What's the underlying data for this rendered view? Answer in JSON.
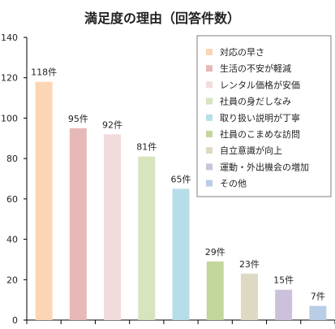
{
  "chart_data": {
    "type": "bar",
    "title": "満足度の理由（回答件数）",
    "categories": [
      "対応の早さ",
      "生活の不安が軽減",
      "レンタル価格が安価",
      "社員の身だしなみ",
      "取り扱い説明が丁寧",
      "社員のこまめな訪問",
      "自立意識が向上",
      "運動・外出機会の増加",
      "その他"
    ],
    "values": [
      118,
      95,
      92,
      81,
      65,
      29,
      23,
      15,
      7
    ],
    "data_labels": [
      "118件",
      "95件",
      "92件",
      "81件",
      "65件",
      "29件",
      "23件",
      "15件",
      "7件"
    ],
    "colors": [
      "#fcd5b5",
      "#e6b9b8",
      "#f2dcdb",
      "#d7e4bd",
      "#b7dee8",
      "#c3d69b",
      "#ddd9c3",
      "#ccc1da",
      "#b9cde5"
    ],
    "ylim": [
      0,
      140
    ],
    "yticks": [
      0,
      20,
      40,
      60,
      80,
      100,
      120,
      140
    ],
    "grid": false,
    "legend_position": "top-right"
  }
}
